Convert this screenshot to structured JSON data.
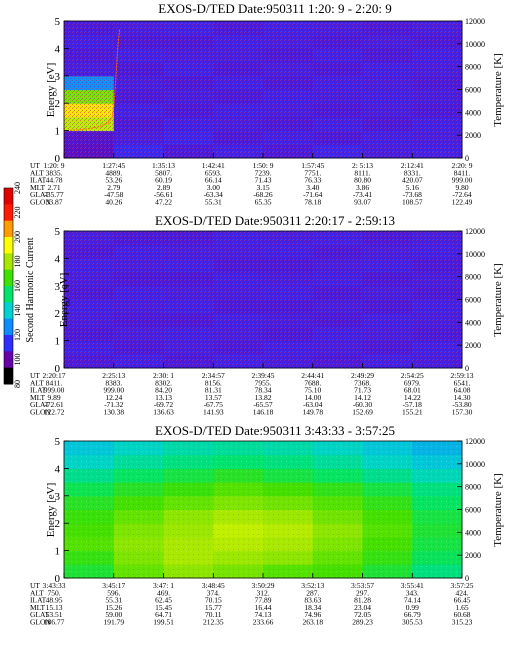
{
  "chart_data": {
    "type": "heatmap",
    "colorbar": {
      "label": "Second Harmonic Current",
      "ticks": [
        "80",
        "100",
        "120",
        "140",
        "160",
        "180",
        "200",
        "220",
        "240"
      ],
      "colors": [
        "#000000",
        "#6a00a8",
        "#2d2dff",
        "#0b8cff",
        "#00d2d2",
        "#00e46a",
        "#40e000",
        "#a8e800",
        "#ffff00",
        "#ff9c00",
        "#ff1a00",
        "#e00000"
      ]
    },
    "panels": [
      {
        "title": "EXOS-D/TED   Date:950311  1:20: 9 - 2:20: 9",
        "ylabel": "Energy [eV]",
        "y2label": "Temperature [K]",
        "ylim": [
          0,
          5
        ],
        "y2lim": [
          0,
          12000
        ],
        "y_ticks": [
          "0",
          "1",
          "2",
          "3",
          "4",
          "5"
        ],
        "y2_ticks": [
          "0",
          "2000",
          "4000",
          "6000",
          "8000",
          "10000",
          "12000"
        ],
        "row_labels": [
          "UT",
          "ALT",
          "ILAT",
          "MLT",
          "GLAT",
          "GLON"
        ],
        "columns": [
          [
            "1:20: 9",
            "3835.",
            "44.78",
            "2.71",
            "-35.77",
            "33.87"
          ],
          [
            "1:27:45",
            "4889.",
            "53.26",
            "2.79",
            "-47.58",
            "40.26"
          ],
          [
            "1:35:13",
            "5807.",
            "60.19",
            "2.89",
            "-56.61",
            "47.22"
          ],
          [
            "1:42:41",
            "6593.",
            "66.14",
            "3.00",
            "-63.34",
            "55.31"
          ],
          [
            "1:50: 9",
            "7239.",
            "71.43",
            "3.15",
            "-68.26",
            "65.35"
          ],
          [
            "1:57:45",
            "7751.",
            "76.33",
            "3.40",
            "-71.64",
            "78.18"
          ],
          [
            "2: 5:13",
            "8111.",
            "80.80",
            "3.86",
            "-73.41",
            "93.07"
          ],
          [
            "2:12:41",
            "8331.",
            "420.07",
            "5.16",
            "-73.68",
            "108.57"
          ],
          [
            "2:20: 9",
            "8411.",
            "999.00",
            "9.80",
            "-72.64",
            "122.49"
          ]
        ],
        "intensity": [
          [
            100,
            108,
            104,
            106,
            104,
            107,
            105,
            106
          ],
          [
            102,
            105,
            107,
            104,
            106,
            104,
            106,
            105
          ],
          [
            185,
            104,
            106,
            105,
            104,
            106,
            104,
            106
          ],
          [
            200,
            106,
            104,
            106,
            105,
            104,
            105,
            104
          ],
          [
            175,
            104,
            105,
            104,
            106,
            105,
            106,
            105
          ],
          [
            125,
            105,
            104,
            106,
            104,
            106,
            105,
            104
          ],
          [
            105,
            104,
            106,
            104,
            105,
            104,
            106,
            105
          ],
          [
            104,
            106,
            105,
            105,
            104,
            106,
            104,
            106
          ],
          [
            106,
            104,
            104,
            106,
            105,
            104,
            105,
            104
          ],
          [
            104,
            105,
            106,
            104,
            106,
            105,
            104,
            105
          ]
        ],
        "temperature_curve": [
          [
            0.0,
            2400
          ],
          [
            0.03,
            2450
          ],
          [
            0.06,
            2550
          ],
          [
            0.09,
            2750
          ],
          [
            0.11,
            3050
          ],
          [
            0.12,
            3500
          ],
          [
            0.125,
            4400
          ],
          [
            0.13,
            6800
          ],
          [
            0.135,
            9600
          ],
          [
            0.14,
            11300
          ]
        ]
      },
      {
        "title": "EXOS-D/TED   Date:950311  2:20:17 - 2:59:13",
        "ylabel": "Energy [eV]",
        "y2label": "Temperature [K]",
        "ylim": [
          0,
          5
        ],
        "y2lim": [
          0,
          12000
        ],
        "y_ticks": [
          "0",
          "1",
          "2",
          "3",
          "4",
          "5"
        ],
        "y2_ticks": [
          "0",
          "2000",
          "4000",
          "6000",
          "8000",
          "10000",
          "12000"
        ],
        "row_labels": [
          "UT",
          "ALT",
          "ILAT",
          "MLT",
          "GLAT",
          "GLON"
        ],
        "columns": [
          [
            "2:20:17",
            "8411.",
            "999.00",
            "9.89",
            "-72.61",
            "122.72"
          ],
          [
            "2:25:13",
            "8383.",
            "999.00",
            "12.24",
            "-71.32",
            "130.38"
          ],
          [
            "2:30: 1",
            "8302.",
            "84.20",
            "13.13",
            "-69.72",
            "136.63"
          ],
          [
            "2:34:57",
            "8156.",
            "81.31",
            "13.57",
            "-67.75",
            "141.93"
          ],
          [
            "2:39:45",
            "7955.",
            "78.34",
            "13.82",
            "-65.57",
            "146.18"
          ],
          [
            "2:44:41",
            "7688.",
            "75.10",
            "14.00",
            "-63.04",
            "149.78"
          ],
          [
            "2:49:29",
            "7368.",
            "71.73",
            "14.12",
            "-60.30",
            "152.69"
          ],
          [
            "2:54:25",
            "6979.",
            "68.01",
            "14.22",
            "-57.18",
            "155.21"
          ],
          [
            "2:59:13",
            "6541.",
            "64.08",
            "14.30",
            "-53.80",
            "157.30"
          ]
        ],
        "intensity": [
          [
            104,
            106,
            104,
            106,
            105,
            104,
            106,
            105
          ],
          [
            106,
            104,
            105,
            104,
            106,
            105,
            104,
            106
          ],
          [
            104,
            105,
            106,
            105,
            104,
            106,
            105,
            104
          ],
          [
            105,
            104,
            104,
            106,
            105,
            104,
            106,
            105
          ],
          [
            106,
            105,
            106,
            104,
            104,
            105,
            104,
            106
          ],
          [
            104,
            106,
            105,
            105,
            106,
            104,
            105,
            104
          ],
          [
            105,
            104,
            104,
            106,
            105,
            106,
            104,
            105
          ],
          [
            106,
            105,
            106,
            104,
            104,
            105,
            106,
            104
          ],
          [
            104,
            106,
            105,
            105,
            106,
            104,
            105,
            106
          ],
          [
            105,
            104,
            104,
            106,
            105,
            106,
            104,
            105
          ]
        ]
      },
      {
        "title": "EXOS-D/TED   Date:950311  3:43:33 - 3:57:25",
        "ylabel": "Energy [eV]",
        "y2label": "Temperature [K]",
        "ylim": [
          0,
          5
        ],
        "y2lim": [
          0,
          12000
        ],
        "y_ticks": [
          "0",
          "1",
          "2",
          "3",
          "4",
          "5"
        ],
        "y2_ticks": [
          "0",
          "2000",
          "4000",
          "6000",
          "8000",
          "10000",
          "12000"
        ],
        "row_labels": [
          "UT",
          "ALT",
          "ILAT",
          "MLT",
          "GLAT",
          "GLON"
        ],
        "columns": [
          [
            "3:43:33",
            "750.",
            "48.95",
            "15.13",
            "53.51",
            "186.77"
          ],
          [
            "3:45:17",
            "596.",
            "55.31",
            "15.26",
            "59.00",
            "191.79"
          ],
          [
            "3:47: 1",
            "469.",
            "62.45",
            "15.45",
            "64.71",
            "199.51"
          ],
          [
            "3:48:45",
            "374.",
            "70.15",
            "15.77",
            "70.11",
            "212.35"
          ],
          [
            "3:50:29",
            "312.",
            "77.89",
            "16.44",
            "74.13",
            "233.66"
          ],
          [
            "3:52:13",
            "287.",
            "83.63",
            "18.34",
            "74.96",
            "263.18"
          ],
          [
            "3:53:57",
            "297.",
            "81.28",
            "23.04",
            "72.05",
            "289.23"
          ],
          [
            "3:55:41",
            "343.",
            "74.14",
            "0.99",
            "66.79",
            "305.53"
          ],
          [
            "3:57:25",
            "424.",
            "66.45",
            "1.65",
            "60.68",
            "315.23"
          ]
        ],
        "intensity": [
          [
            160,
            172,
            178,
            175,
            170,
            168,
            160,
            150
          ],
          [
            165,
            176,
            182,
            180,
            178,
            172,
            165,
            155
          ],
          [
            170,
            178,
            182,
            184,
            182,
            176,
            168,
            158
          ],
          [
            168,
            176,
            180,
            186,
            184,
            178,
            170,
            160
          ],
          [
            166,
            172,
            178,
            182,
            180,
            174,
            168,
            158
          ],
          [
            162,
            168,
            172,
            176,
            174,
            170,
            164,
            154
          ],
          [
            156,
            162,
            166,
            170,
            168,
            164,
            158,
            150
          ],
          [
            148,
            154,
            158,
            162,
            158,
            154,
            148,
            142
          ],
          [
            140,
            146,
            150,
            152,
            150,
            146,
            140,
            136
          ],
          [
            136,
            140,
            144,
            146,
            144,
            140,
            136,
            132
          ]
        ]
      }
    ]
  }
}
